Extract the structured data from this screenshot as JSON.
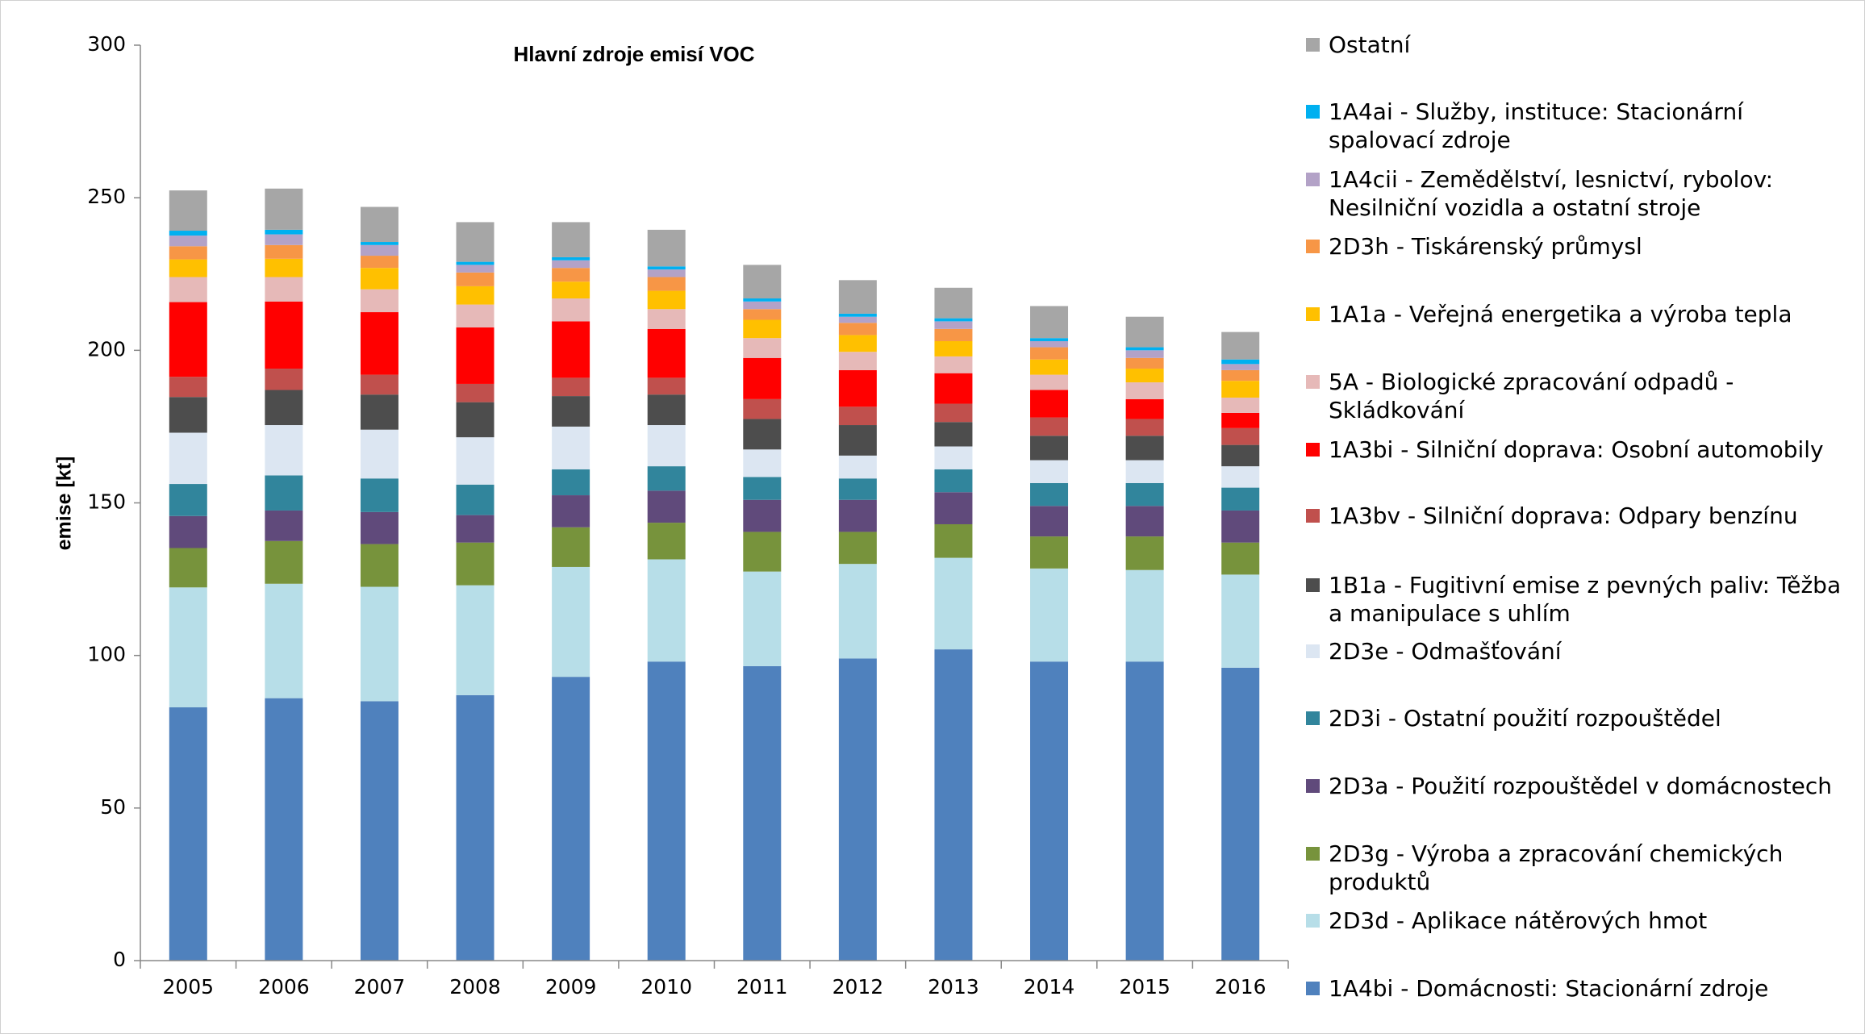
{
  "chart_data": {
    "type": "stacked_bar",
    "title": "Hlavní zdroje emisí VOC",
    "y_label": "emise [kt]",
    "categories": [
      "2005",
      "2006",
      "2007",
      "2008",
      "2009",
      "2010",
      "2011",
      "2012",
      "2013",
      "2014",
      "2015",
      "2016"
    ],
    "ylim": [
      0,
      300
    ],
    "yticks": [
      0,
      50,
      100,
      150,
      200,
      250,
      300
    ],
    "legend_position": "right",
    "series": [
      {
        "name": "1A4bi - Domácnosti: Stacionární zdroje",
        "color": "#4f81bd",
        "values": [
          83,
          86,
          85,
          87,
          93,
          98,
          96.5,
          99,
          102,
          98,
          98,
          96
        ]
      },
      {
        "name": "2D3d - Aplikace nátěrových hmot",
        "color": "#b7dee8",
        "values": [
          39.3,
          37.5,
          37.5,
          36,
          36,
          33.5,
          31,
          31,
          30,
          30.5,
          30,
          30.5
        ]
      },
      {
        "name": "2D3g - Výroba a zpracování chemických produktů",
        "color": "#77933c",
        "values": [
          12.9,
          14,
          14,
          14,
          13,
          12,
          13,
          10.5,
          11,
          10.5,
          11,
          10.5
        ]
      },
      {
        "name": "2D3a - Použití rozpouštědel v domácnostech",
        "color": "#604a7b",
        "values": [
          10.5,
          10,
          10.5,
          9,
          10.5,
          10.5,
          10.5,
          10.5,
          10.5,
          10,
          10,
          10.5
        ]
      },
      {
        "name": "2D3i - Ostatní použití rozpouštědel",
        "color": "#31859c",
        "values": [
          10.5,
          11.5,
          11,
          10,
          8.5,
          8,
          7.5,
          7,
          7.5,
          7.5,
          7.5,
          7.5
        ]
      },
      {
        "name": "2D3e - Odmašťování",
        "color": "#dce6f2",
        "values": [
          16.8,
          16.5,
          16,
          15.5,
          14,
          13.5,
          9,
          7.5,
          7.5,
          7.5,
          7.5,
          7
        ]
      },
      {
        "name": "1B1a - Fugitivní emise z pevných paliv: Těžba a manipulace s uhlím",
        "color": "#4d4d4d",
        "values": [
          11.7,
          11.5,
          11.5,
          11.5,
          10,
          10,
          10,
          10,
          8,
          8,
          8,
          7
        ]
      },
      {
        "name": "1A3bv - Silniční doprava: Odpary benzínu",
        "color": "#c0504d",
        "values": [
          6.6,
          7,
          6.5,
          6,
          6,
          5.5,
          6.5,
          6,
          6,
          6,
          5.5,
          5.5
        ]
      },
      {
        "name": "1A3bi - Silniční doprava: Osobní automobily",
        "color": "#ff0000",
        "values": [
          24.5,
          22,
          20.5,
          18.5,
          18.5,
          16,
          13.5,
          12,
          10,
          9,
          6.5,
          5
        ]
      },
      {
        "name": "5A - Biologické zpracování odpadů - Skládkování",
        "color": "#e6b9b8",
        "values": [
          8.2,
          8,
          7.5,
          7.5,
          7.5,
          6.5,
          6.5,
          6,
          5.5,
          5,
          5.5,
          5
        ]
      },
      {
        "name": "1A1a - Veřejná energetika a výroba tepla",
        "color": "#ffc000",
        "values": [
          5.8,
          6,
          7,
          6,
          5.5,
          6,
          6,
          5.5,
          5,
          5,
          4.5,
          5.5
        ]
      },
      {
        "name": "2D3h - Tiskárenský průmysl",
        "color": "#f79646",
        "values": [
          4.3,
          4.5,
          4,
          4.5,
          4.5,
          4.5,
          3.5,
          4,
          4,
          4,
          3.5,
          3.5
        ]
      },
      {
        "name": "1A4cii - Zemědělství, lesnictví, rybolov: Nesilniční vozidla a ostatní stroje",
        "color": "#b3a2c7",
        "values": [
          3.5,
          3.5,
          3.5,
          2.5,
          2.5,
          2.5,
          2.5,
          2,
          2.5,
          2,
          2.5,
          2
        ]
      },
      {
        "name": "1A4ai - Služby, instituce: Stacionární spalovací zdroje",
        "color": "#00b0f0",
        "values": [
          1.6,
          1.5,
          1,
          1,
          1,
          1,
          1,
          1,
          1,
          1,
          1,
          1.5
        ]
      },
      {
        "name": "Ostatní",
        "color": "#a6a6a6",
        "values": [
          13.2,
          13.5,
          11.5,
          13,
          11.5,
          12,
          11,
          11,
          10,
          10.5,
          10,
          9
        ]
      }
    ]
  }
}
